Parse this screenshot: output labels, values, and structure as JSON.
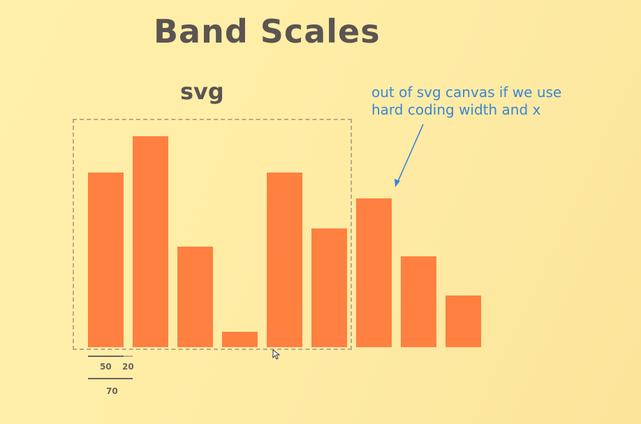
{
  "title": "Band Scales",
  "svg_label": "svg",
  "note": {
    "line1": "out of svg canvas if we use",
    "line2": "hard coding width and x"
  },
  "dimensions": {
    "bar_width_label": "50",
    "padding_label": "20",
    "step_label": "70"
  },
  "colors": {
    "bar": "#ff8040",
    "annotation": "#3a86d6",
    "title": "#5b5452"
  },
  "chart_data": {
    "type": "bar",
    "categories": [
      "",
      "",
      "",
      "",
      "",
      "",
      "",
      "",
      ""
    ],
    "values": [
      250,
      302,
      144,
      22,
      250,
      170,
      213,
      130,
      74
    ],
    "title": "",
    "xlabel": "",
    "ylabel": ""
  }
}
